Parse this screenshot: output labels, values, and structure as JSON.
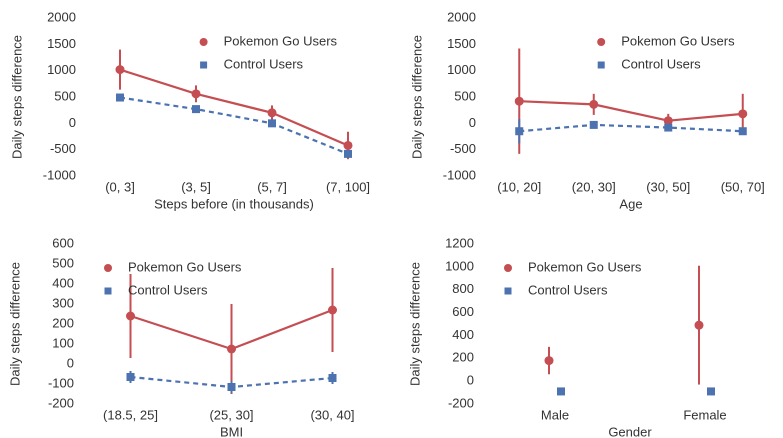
{
  "chart_data": [
    {
      "type": "line",
      "x_label": "Steps before (in thousands)",
      "y_label": "Daily steps difference",
      "categories": [
        "(0, 3]",
        "(3, 5]",
        "(5, 7]",
        "(7, 100]"
      ],
      "ylim": [
        -1000,
        2000
      ],
      "yticks": [
        -1000,
        -500,
        0,
        500,
        1000,
        1500,
        2000
      ],
      "legend": "upper right",
      "series": [
        {
          "name": "Pokemon Go Users",
          "color": "#c44e52",
          "marker": "circle",
          "dash": false,
          "values": [
            1020,
            560,
            200,
            -420
          ],
          "errors": [
            380,
            160,
            140,
            260
          ]
        },
        {
          "name": "Control Users",
          "color": "#4c72b0",
          "marker": "square",
          "dash": true,
          "values": [
            490,
            270,
            0,
            -580
          ],
          "errors": [
            40,
            40,
            40,
            40
          ]
        }
      ]
    },
    {
      "type": "line",
      "x_label": "Age",
      "y_label": "Daily steps difference",
      "categories": [
        "(10, 20]",
        "(20, 30]",
        "(30, 50]",
        "(50, 70]"
      ],
      "ylim": [
        -1000,
        2000
      ],
      "yticks": [
        -1000,
        -500,
        0,
        500,
        1000,
        1500,
        2000
      ],
      "legend": "upper right",
      "series": [
        {
          "name": "Pokemon Go Users",
          "color": "#c44e52",
          "marker": "circle",
          "dash": false,
          "values": [
            420,
            360,
            50,
            180
          ],
          "errors": [
            1000,
            200,
            130,
            380
          ]
        },
        {
          "name": "Control Users",
          "color": "#4c72b0",
          "marker": "square",
          "dash": true,
          "values": [
            -150,
            -30,
            -80,
            -150
          ],
          "errors": [
            230,
            50,
            50,
            50
          ]
        }
      ]
    },
    {
      "type": "line",
      "x_label": "BMI",
      "y_label": "Daily steps difference",
      "categories": [
        "(18.5, 25]",
        "(25, 30]",
        "(30, 40]"
      ],
      "ylim": [
        -200,
        600
      ],
      "yticks": [
        -200,
        -100,
        0,
        100,
        200,
        300,
        400,
        500,
        600
      ],
      "legend": "upper left",
      "series": [
        {
          "name": "Pokemon Go Users",
          "color": "#c44e52",
          "marker": "circle",
          "dash": false,
          "values": [
            240,
            75,
            270
          ],
          "errors": [
            210,
            225,
            210
          ]
        },
        {
          "name": "Control Users",
          "color": "#4c72b0",
          "marker": "square",
          "dash": true,
          "values": [
            -65,
            -115,
            -70
          ],
          "errors": [
            30,
            30,
            30
          ]
        }
      ]
    },
    {
      "type": "scatter",
      "x_label": "Gender",
      "y_label": "Daily steps difference",
      "categories": [
        "Male",
        "Female"
      ],
      "ylim": [
        -200,
        1200
      ],
      "yticks": [
        -200,
        0,
        200,
        400,
        600,
        800,
        1000,
        1200
      ],
      "legend": "upper left",
      "series": [
        {
          "name": "Pokemon Go Users",
          "color": "#c44e52",
          "marker": "circle",
          "dash": false,
          "values": [
            180,
            490
          ],
          "errors": [
            120,
            520
          ]
        },
        {
          "name": "Control Users",
          "color": "#4c72b0",
          "marker": "square",
          "dash": false,
          "values": [
            -90,
            -90
          ],
          "errors": [
            25,
            30
          ]
        }
      ]
    }
  ]
}
